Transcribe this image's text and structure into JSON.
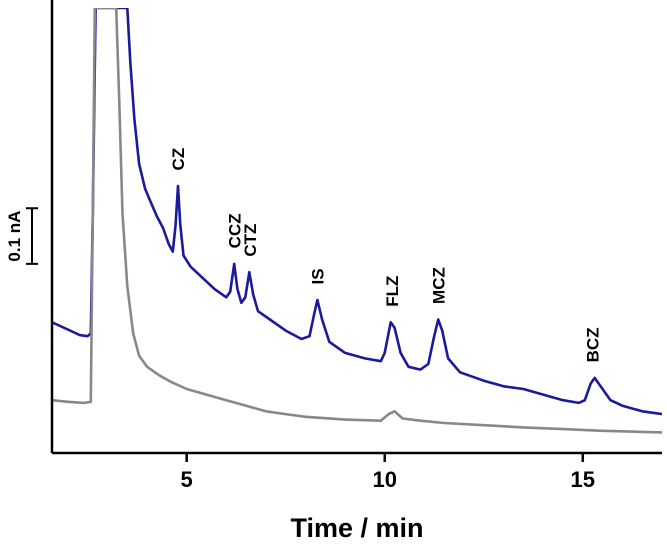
{
  "chart_data": {
    "type": "line",
    "title": "",
    "xlabel": "Time / min",
    "ylabel": "",
    "xlim": [
      1.6,
      17.0
    ],
    "ylim": [
      -0.08,
      0.72
    ],
    "grid": false,
    "legend": "none",
    "x_ticks": [
      5,
      10,
      15
    ],
    "x_tick_labels": [
      "5",
      "10",
      "15"
    ],
    "scale_bar": {
      "label": "0.1 nA",
      "value": 0.1,
      "from": 0.36,
      "to": 0.26
    },
    "series": [
      {
        "color": "#1a1a9a",
        "points": [
          [
            1.6,
            0.155
          ],
          [
            2.0,
            0.142
          ],
          [
            2.3,
            0.132
          ],
          [
            2.5,
            0.13
          ],
          [
            2.58,
            0.135
          ],
          [
            2.63,
            0.35
          ],
          [
            2.7,
            0.72
          ],
          [
            3.5,
            0.72
          ],
          [
            3.58,
            0.62
          ],
          [
            3.68,
            0.52
          ],
          [
            3.8,
            0.44
          ],
          [
            3.95,
            0.395
          ],
          [
            4.1,
            0.37
          ],
          [
            4.25,
            0.345
          ],
          [
            4.4,
            0.325
          ],
          [
            4.55,
            0.295
          ],
          [
            4.65,
            0.282
          ],
          [
            4.72,
            0.33
          ],
          [
            4.78,
            0.4
          ],
          [
            4.84,
            0.33
          ],
          [
            4.92,
            0.275
          ],
          [
            5.1,
            0.255
          ],
          [
            5.4,
            0.235
          ],
          [
            5.7,
            0.215
          ],
          [
            6.0,
            0.2
          ],
          [
            6.1,
            0.21
          ],
          [
            6.2,
            0.26
          ],
          [
            6.28,
            0.215
          ],
          [
            6.38,
            0.19
          ],
          [
            6.48,
            0.2
          ],
          [
            6.58,
            0.245
          ],
          [
            6.68,
            0.205
          ],
          [
            6.8,
            0.175
          ],
          [
            7.1,
            0.16
          ],
          [
            7.5,
            0.14
          ],
          [
            7.9,
            0.125
          ],
          [
            8.1,
            0.13
          ],
          [
            8.22,
            0.17
          ],
          [
            8.3,
            0.195
          ],
          [
            8.42,
            0.16
          ],
          [
            8.6,
            0.12
          ],
          [
            9.0,
            0.1
          ],
          [
            9.5,
            0.09
          ],
          [
            9.9,
            0.085
          ],
          [
            10.0,
            0.1
          ],
          [
            10.15,
            0.155
          ],
          [
            10.25,
            0.145
          ],
          [
            10.4,
            0.1
          ],
          [
            10.6,
            0.075
          ],
          [
            10.9,
            0.07
          ],
          [
            11.1,
            0.08
          ],
          [
            11.25,
            0.13
          ],
          [
            11.35,
            0.16
          ],
          [
            11.45,
            0.14
          ],
          [
            11.6,
            0.09
          ],
          [
            11.9,
            0.065
          ],
          [
            12.5,
            0.05
          ],
          [
            13.0,
            0.04
          ],
          [
            13.5,
            0.035
          ],
          [
            14.0,
            0.025
          ],
          [
            14.5,
            0.015
          ],
          [
            14.9,
            0.01
          ],
          [
            15.05,
            0.015
          ],
          [
            15.2,
            0.045
          ],
          [
            15.3,
            0.055
          ],
          [
            15.45,
            0.04
          ],
          [
            15.7,
            0.015
          ],
          [
            16.0,
            0.005
          ],
          [
            16.5,
            -0.005
          ],
          [
            17.0,
            -0.01
          ]
        ]
      },
      {
        "color": "#888888",
        "points": [
          [
            1.6,
            0.015
          ],
          [
            2.0,
            0.012
          ],
          [
            2.4,
            0.01
          ],
          [
            2.58,
            0.012
          ],
          [
            2.63,
            0.35
          ],
          [
            2.68,
            0.72
          ],
          [
            3.22,
            0.72
          ],
          [
            3.3,
            0.55
          ],
          [
            3.38,
            0.35
          ],
          [
            3.5,
            0.22
          ],
          [
            3.65,
            0.135
          ],
          [
            3.8,
            0.095
          ],
          [
            4.0,
            0.075
          ],
          [
            4.3,
            0.06
          ],
          [
            4.6,
            0.048
          ],
          [
            5.0,
            0.035
          ],
          [
            5.5,
            0.025
          ],
          [
            6.0,
            0.015
          ],
          [
            6.5,
            0.005
          ],
          [
            7.0,
            -0.005
          ],
          [
            7.5,
            -0.01
          ],
          [
            8.0,
            -0.015
          ],
          [
            9.0,
            -0.02
          ],
          [
            9.9,
            -0.022
          ],
          [
            10.1,
            -0.01
          ],
          [
            10.25,
            -0.005
          ],
          [
            10.45,
            -0.018
          ],
          [
            10.9,
            -0.022
          ],
          [
            11.5,
            -0.026
          ],
          [
            12.5,
            -0.03
          ],
          [
            13.5,
            -0.034
          ],
          [
            14.5,
            -0.037
          ],
          [
            15.5,
            -0.04
          ],
          [
            16.5,
            -0.042
          ],
          [
            17.0,
            -0.043
          ]
        ]
      }
    ],
    "annotations": [
      {
        "text": "CZ",
        "x": 4.78,
        "y": 0.41
      },
      {
        "text": "CCZ",
        "x": 6.21,
        "y": 0.27
      },
      {
        "text": "CTZ",
        "x": 6.6,
        "y": 0.255
      },
      {
        "text": "IS",
        "x": 8.3,
        "y": 0.205
      },
      {
        "text": "FLZ",
        "x": 10.18,
        "y": 0.165
      },
      {
        "text": "MCZ",
        "x": 11.36,
        "y": 0.17
      },
      {
        "text": "BCZ",
        "x": 15.25,
        "y": 0.065
      }
    ]
  }
}
